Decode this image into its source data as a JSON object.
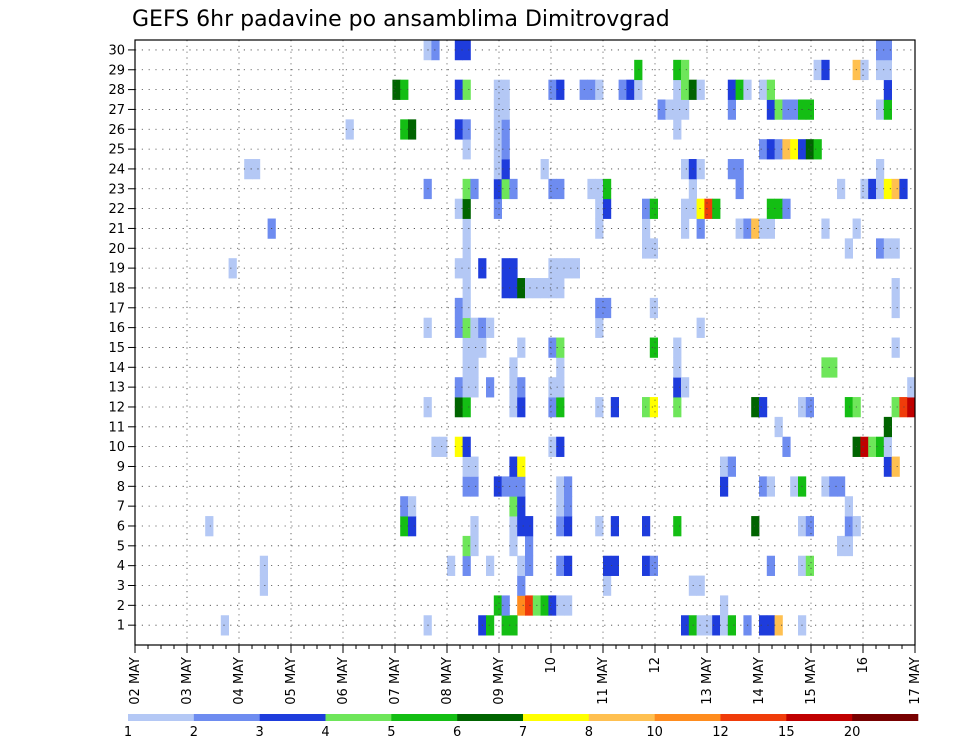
{
  "chart_data": {
    "type": "heatmap",
    "title": "GEFS 6hr padavine po ansamblima Dimitrovgrad",
    "xlabel": "",
    "ylabel": "",
    "x_ticks": [
      "02 MAY",
      "03 MAY",
      "04 MAY",
      "05 MAY",
      "06 MAY",
      "07 MAY",
      "08 MAY",
      "09 MAY",
      "10",
      "11 MAY",
      "12",
      "13 MAY",
      "14 MAY",
      "15 MAY",
      "16",
      "17 MAY"
    ],
    "y_ticks": [
      "1",
      "2",
      "3",
      "4",
      "5",
      "6",
      "7",
      "8",
      "9",
      "10",
      "11",
      "12",
      "13",
      "14",
      "15",
      "16",
      "17",
      "18",
      "19",
      "20",
      "21",
      "22",
      "23",
      "24",
      "25",
      "26",
      "27",
      "28",
      "29",
      "30"
    ],
    "x_range": [
      "02 MAY 00Z",
      "17 MAY 00Z"
    ],
    "time_step_hours": 6,
    "members": 30,
    "grid": true,
    "legend_position": "bottom",
    "colorbar": {
      "boundaries": [
        "1",
        "2",
        "3",
        "4",
        "5",
        "6",
        "7",
        "8",
        "10",
        "12",
        "15",
        "20"
      ],
      "colors": [
        "#b4c8f5",
        "#6e8cf0",
        "#1e3cdc",
        "#6ee65a",
        "#14be14",
        "#006400",
        "#ffff00",
        "#ffc050",
        "#ff8c1e",
        "#f03c0a",
        "#c00000",
        "#780000"
      ]
    },
    "cell_values_mm": {
      "1": {
        "11": 1.5,
        "37": 1.5,
        "44": 3.5,
        "45": 5,
        "47": 5.5,
        "48": 5.5,
        "70": 3.5,
        "71": 5,
        "72": 1.5,
        "73": 1.5,
        "74": 3.5,
        "75": 1.5,
        "76": 5.5,
        "78": 2.5,
        "80": 3.5,
        "81": 3.5,
        "82": 8.5,
        "85": 1.5
      },
      "2": {
        "46": 5.5,
        "47": 2.5,
        "49": 11,
        "50": 13,
        "51": 4.5,
        "52": 5.5,
        "53": 3.5,
        "54": 1.5,
        "55": 1.5,
        "75": 1.5
      },
      "3": {
        "16": 1.5,
        "49": 2.5,
        "60": 1.5,
        "71": 1.5,
        "72": 1.5
      },
      "4": {
        "16": 1.5,
        "40": 1.5,
        "42": 2.5,
        "45": 1.5,
        "49": 1.5,
        "50": 2.5,
        "54": 2.5,
        "55": 3.5,
        "60": 3.5,
        "61": 3.5,
        "65": 3.5,
        "66": 2.5,
        "81": 2.5,
        "85": 1.5,
        "86": 4.5
      },
      "5": {
        "42": 4.5,
        "43": 1.5,
        "48": 1.5,
        "50": 2.5,
        "90": 1.5,
        "91": 1.5
      },
      "6": {
        "9": 1.5,
        "34": 5.5,
        "35": 3.5,
        "43": 1.5,
        "48": 1.5,
        "49": 3.5,
        "50": 3.5,
        "54": 2.5,
        "55": 3.5,
        "59": 1.5,
        "61": 3.5,
        "65": 3.5,
        "69": 5.5,
        "79": 6.5,
        "85": 1.5,
        "86": 2.5,
        "91": 2.5,
        "92": 1.5
      },
      "7": {
        "34": 2.5,
        "35": 1.5,
        "48": 4.5,
        "49": 3.5,
        "54": 1.5,
        "55": 2.5,
        "91": 1.5
      },
      "8": {
        "42": 2.5,
        "43": 2.5,
        "46": 3.5,
        "47": 2.5,
        "48": 2.5,
        "49": 2.5,
        "54": 1.5,
        "55": 2.5,
        "75": 3.5,
        "80": 2.5,
        "81": 1.5,
        "84": 1.5,
        "85": 5.5,
        "88": 1.5,
        "89": 2.5,
        "90": 2.5
      },
      "9": {
        "42": 1.5,
        "43": 1.5,
        "48": 3.5,
        "49": 7.5,
        "75": 1.5,
        "76": 2.5,
        "96": 3.5,
        "97": 9
      },
      "10": {
        "38": 1.5,
        "39": 1.5,
        "41": 7.5,
        "42": 3.5,
        "53": 1.5,
        "54": 3.5,
        "83": 2.5,
        "92": 6.5,
        "93": 16,
        "94": 4.5,
        "95": 5.5,
        "96": 1.5
      },
      "11": {
        "82": 1.5,
        "96": 6.5
      },
      "12": {
        "37": 1.5,
        "41": 6.5,
        "42": 5.5,
        "48": 1.5,
        "49": 3.5,
        "53": 2.5,
        "54": 5.5,
        "59": 1.5,
        "61": 3.5,
        "65": 4.5,
        "66": 7.5,
        "69": 4.5,
        "79": 6.5,
        "80": 3.5,
        "85": 1.5,
        "86": 2.5,
        "91": 5.5,
        "92": 4.5,
        "97": 4.5,
        "98": 13,
        "99": 16
      },
      "13": {
        "41": 2.5,
        "42": 1.5,
        "43": 1.5,
        "45": 2.5,
        "48": 1.5,
        "49": 2.5,
        "53": 1.5,
        "54": 1.5,
        "69": 3.5,
        "70": 1.5,
        "99": 1.5
      },
      "14": {
        "42": 1.5,
        "43": 1.5,
        "48": 1.5,
        "54": 1.5,
        "69": 1.5,
        "88": 4.5,
        "89": 4.5
      },
      "15": {
        "42": 1.5,
        "43": 1.5,
        "44": 1.5,
        "49": 1.5,
        "53": 2.5,
        "54": 4.5,
        "66": 5.5,
        "69": 1.5,
        "97": 1.5
      },
      "16": {
        "37": 1.5,
        "41": 2.5,
        "42": 4.5,
        "43": 1.5,
        "44": 2.5,
        "45": 1.5,
        "59": 1.5,
        "72": 1.5
      },
      "17": {
        "41": 2.5,
        "42": 1.5,
        "59": 2.5,
        "60": 2.5,
        "66": 1.5,
        "97": 1.5
      },
      "18": {
        "42": 1.5,
        "47": 3.5,
        "48": 3.5,
        "49": 6.5,
        "50": 1.5,
        "51": 1.5,
        "52": 1.5,
        "53": 1.5,
        "54": 1.5,
        "97": 1.5
      },
      "19": {
        "12": 1.5,
        "41": 1.5,
        "42": 1.5,
        "44": 3.5,
        "47": 3.5,
        "48": 3.5,
        "53": 1.5,
        "54": 1.5,
        "55": 1.5,
        "56": 1.5
      },
      "20": {
        "42": 1.5,
        "65": 1.5,
        "66": 1.5,
        "91": 1.5,
        "95": 2.5,
        "96": 1.5,
        "97": 1.5
      },
      "21": {
        "17": 2.5,
        "42": 1.5,
        "59": 1.5,
        "65": 1.5,
        "70": 1.5,
        "72": 2.5,
        "77": 1.5,
        "78": 2.5,
        "79": 9,
        "80": 1.5,
        "81": 1.5,
        "88": 1.5,
        "92": 1.5
      },
      "22": {
        "41": 1.5,
        "42": 6.5,
        "46": 2.5,
        "59": 1.5,
        "60": 3.5,
        "65": 2.5,
        "66": 5.5,
        "70": 1.5,
        "71": 1.5,
        "72": 7.5,
        "73": 13,
        "74": 5.5,
        "81": 5.5,
        "82": 5.5,
        "83": 2.5
      },
      "23": {
        "37": 2.5,
        "42": 4.5,
        "43": 2.5,
        "46": 3.5,
        "47": 4.5,
        "48": 2.5,
        "53": 2.5,
        "54": 2.5,
        "58": 1.5,
        "59": 1.5,
        "60": 5.5,
        "71": 1.5,
        "77": 2.5,
        "90": 1.5,
        "93": 1.5,
        "94": 3.5,
        "95": 1.5,
        "96": 7.5,
        "97": 9,
        "98": 3.5
      },
      "24": {
        "14": 1.5,
        "15": 1.5,
        "46": 1.5,
        "47": 3.5,
        "52": 1.5,
        "70": 1.5,
        "71": 3.5,
        "72": 1.5,
        "76": 2.5,
        "77": 2.5,
        "95": 1.5
      },
      "25": {
        "42": 1.5,
        "46": 1.5,
        "47": 2.5,
        "80": 2.5,
        "81": 3.5,
        "82": 2.5,
        "83": 9,
        "84": 7.5,
        "85": 3.5,
        "86": 6.5,
        "87": 5.5
      },
      "26": {
        "27": 1.5,
        "34": 5.5,
        "35": 6.5,
        "41": 3.5,
        "42": 2.5,
        "46": 1.5,
        "47": 2.5,
        "69": 1.5
      },
      "27": {
        "46": 1.5,
        "47": 1.5,
        "67": 2.5,
        "68": 1.5,
        "69": 1.5,
        "70": 1.5,
        "76": 2.5,
        "81": 3.5,
        "82": 4.5,
        "83": 2.5,
        "84": 2.5,
        "85": 5.5,
        "86": 5.5,
        "95": 1.5,
        "96": 5.5
      },
      "28": {
        "33": 6.5,
        "34": 5.5,
        "41": 3.5,
        "42": 4.5,
        "46": 1.5,
        "47": 1.5,
        "53": 2.5,
        "54": 3.5,
        "57": 2.5,
        "58": 2.5,
        "59": 1.5,
        "62": 2.5,
        "63": 3.5,
        "64": 1.5,
        "69": 1.5,
        "70": 4.5,
        "71": 6.5,
        "72": 1.5,
        "76": 3.5,
        "77": 5.5,
        "78": 1.5,
        "80": 1.5,
        "81": 4.5,
        "96": 3.5
      },
      "29": {
        "64": 5.5,
        "69": 5.5,
        "70": 4.5,
        "87": 1.5,
        "88": 3.5,
        "92": 9,
        "93": 1.5,
        "95": 1.5,
        "96": 1.5
      },
      "30": {
        "37": 1.5,
        "38": 2.5,
        "41": 3.5,
        "42": 3.5,
        "95": 2.5,
        "96": 2.5
      }
    }
  }
}
